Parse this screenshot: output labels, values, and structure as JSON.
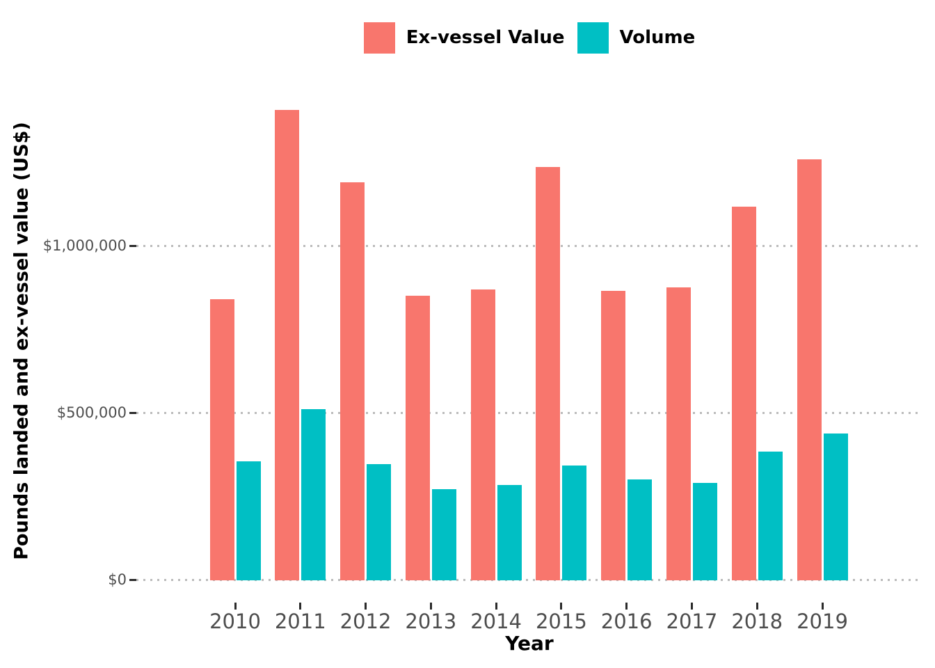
{
  "chart_data": {
    "type": "bar",
    "layout": "grouped",
    "categories": [
      "2010",
      "2011",
      "2012",
      "2013",
      "2014",
      "2015",
      "2016",
      "2017",
      "2018",
      "2019"
    ],
    "series": [
      {
        "name": "Ex-vessel Value",
        "color": "#F8766D",
        "values": [
          842000,
          1408000,
          1192000,
          853000,
          871000,
          1238000,
          867000,
          877000,
          1119000,
          1260000
        ]
      },
      {
        "name": "Volume",
        "color": "#00BFC4",
        "values": [
          356000,
          512000,
          348000,
          273000,
          285000,
          343000,
          302000,
          292000,
          385000,
          440000
        ]
      }
    ],
    "xlabel": "Year",
    "ylabel": "Pounds landed and ex-vessel value (US$)",
    "ylim": [
      0,
      1477000
    ],
    "yticks": [
      {
        "value": 0,
        "label": "$0"
      },
      {
        "value": 500000,
        "label": "$500,000"
      },
      {
        "value": 1000000,
        "label": "$1,000,000"
      }
    ],
    "legend_position": "top",
    "grid": "horizontal-dotted-major-only",
    "colors": {
      "background": "#FFFFFF",
      "grid": "#BBBBBB",
      "tick_mark": "#2B2B2B",
      "tick_label": "#4D4D4D",
      "axis_title": "#000000"
    }
  }
}
